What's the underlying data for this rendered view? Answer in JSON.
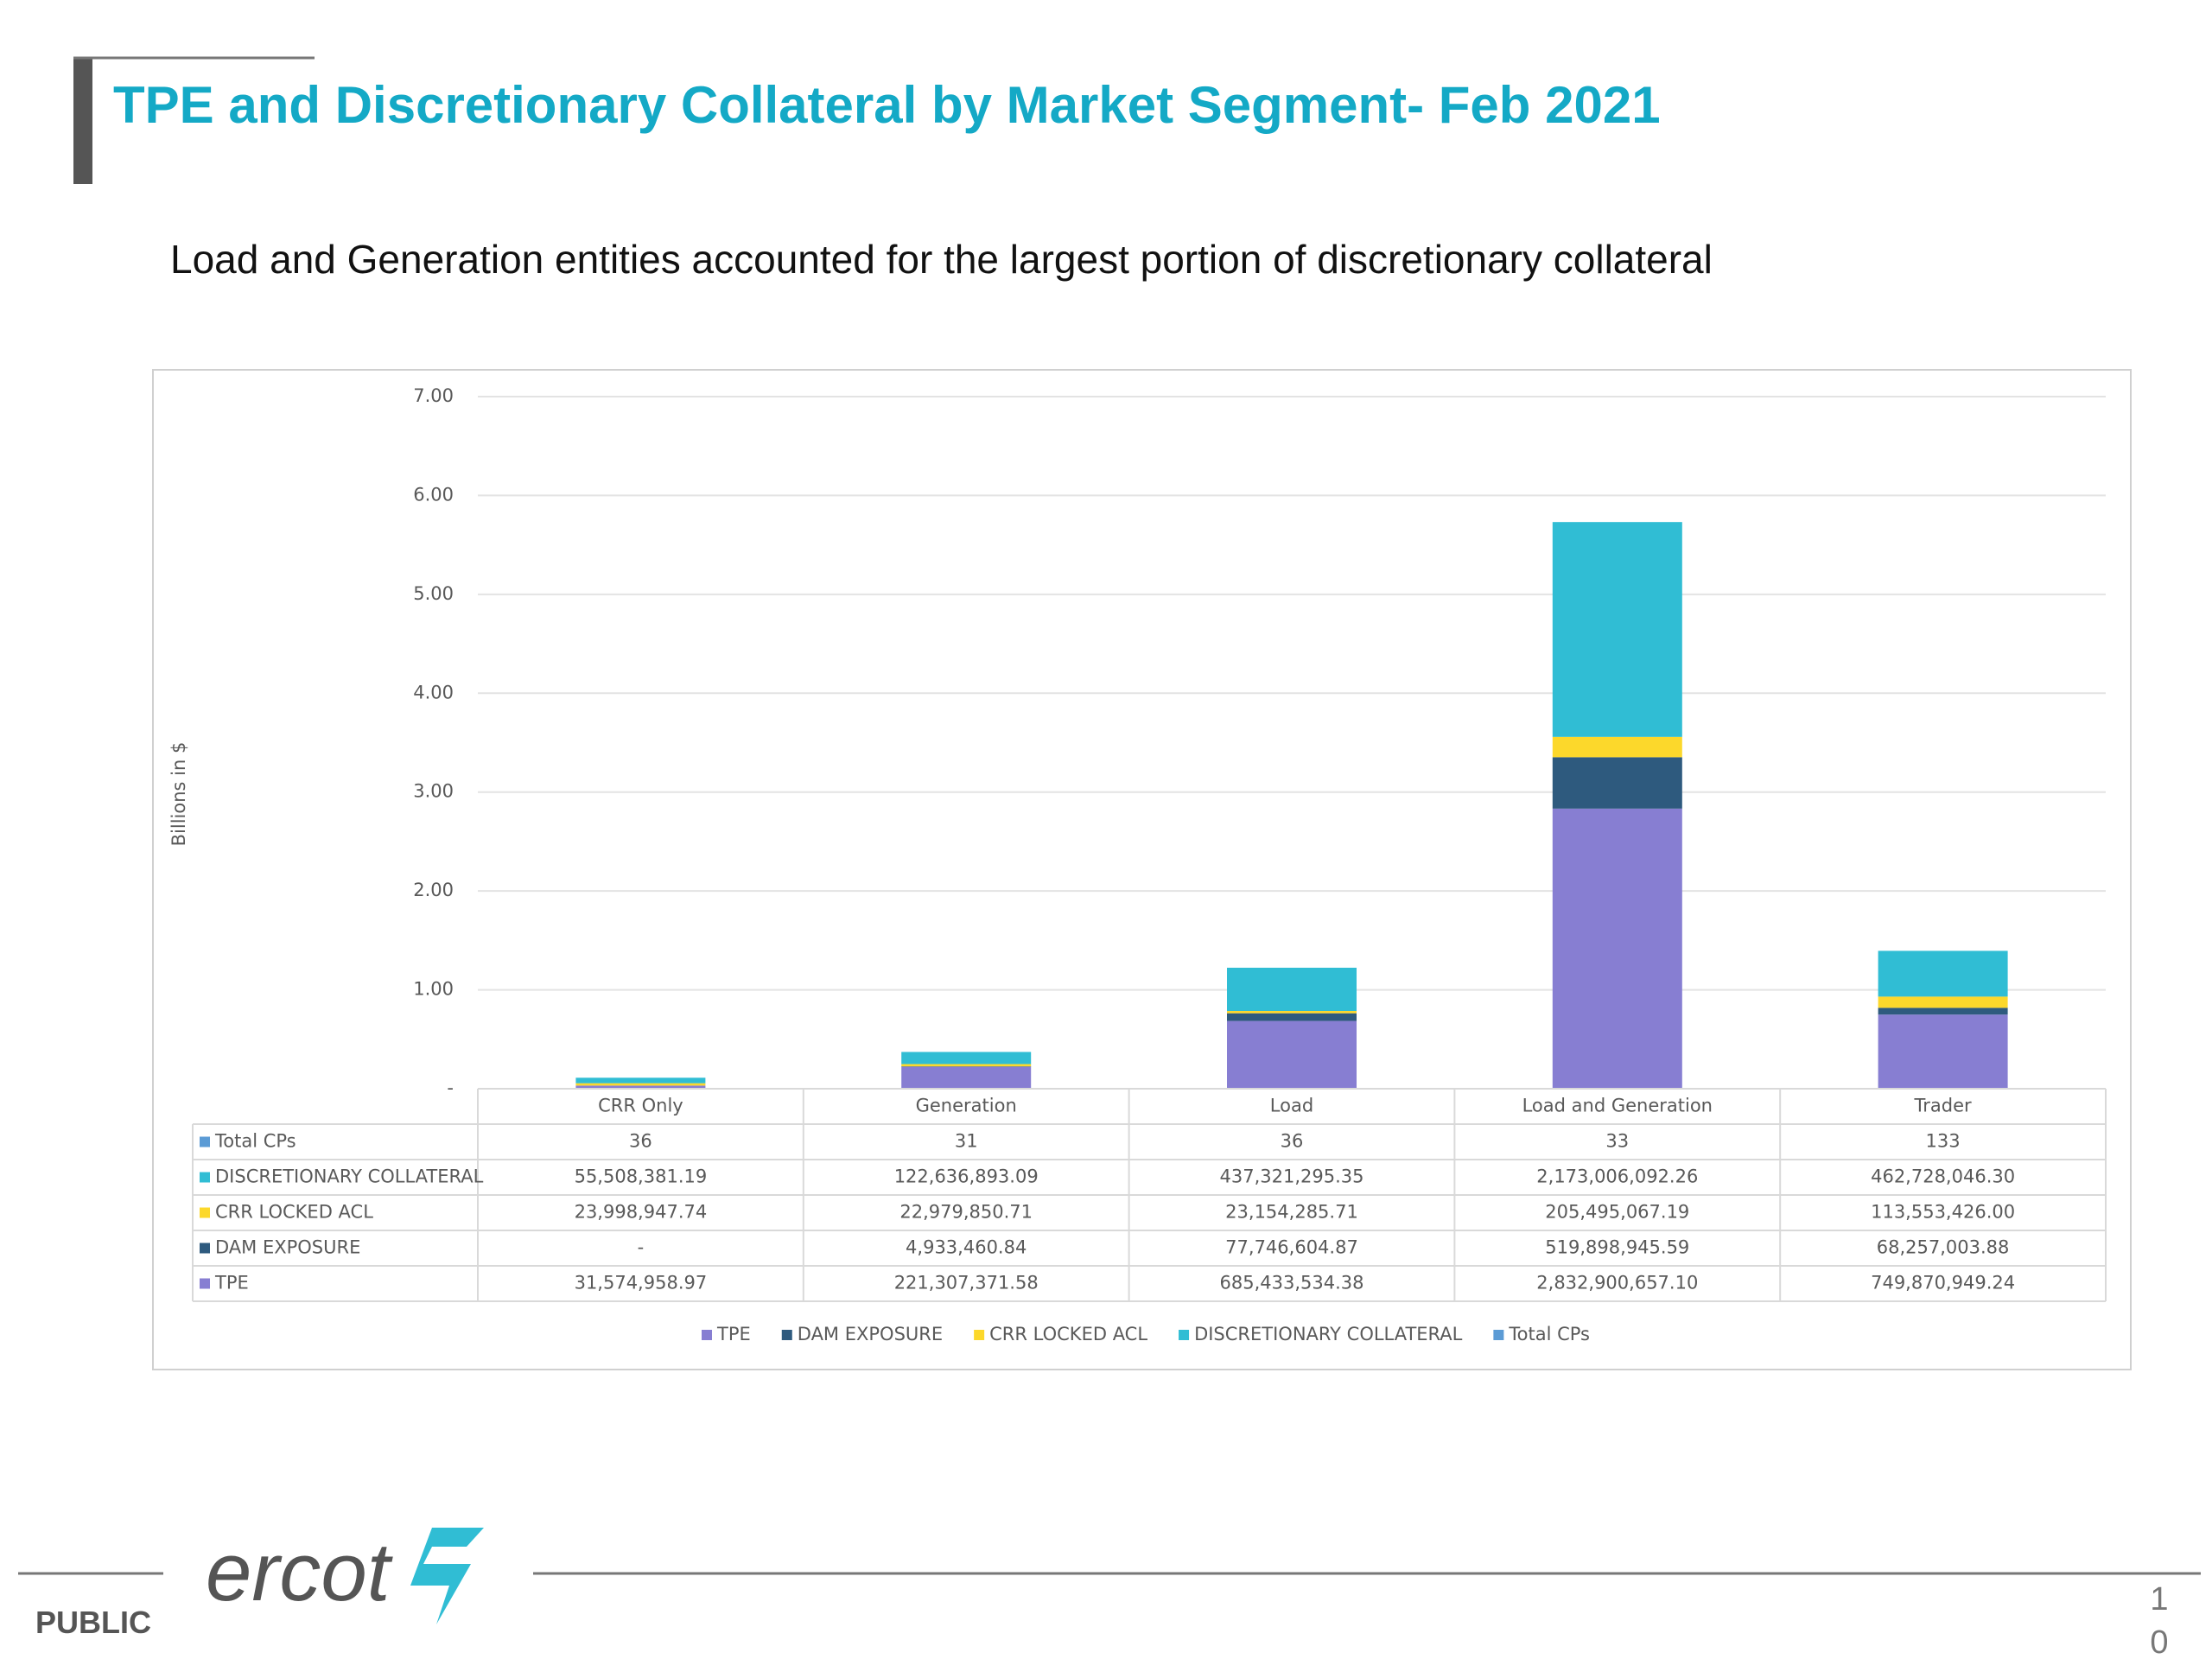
{
  "header": {
    "title": "TPE and Discretionary Collateral by Market Segment- Feb 2021",
    "subtitle": "Load and Generation entities accounted for the largest portion of discretionary collateral"
  },
  "chart_data": {
    "type": "stacked_bar",
    "y_label": "Billions in $",
    "categories": [
      "CRR Only",
      "Generation",
      "Load",
      "Load and Generation",
      "Trader"
    ],
    "ylim": [
      0,
      7
    ],
    "yticks": [
      {
        "value": 0,
        "label": "-"
      },
      {
        "value": 1,
        "label": "1.00"
      },
      {
        "value": 2,
        "label": "2.00"
      },
      {
        "value": 3,
        "label": "3.00"
      },
      {
        "value": 4,
        "label": "4.00"
      },
      {
        "value": 5,
        "label": "5.00"
      },
      {
        "value": 6,
        "label": "6.00"
      },
      {
        "value": 7,
        "label": "7.00"
      }
    ],
    "grid": true,
    "series": [
      {
        "name": "TPE",
        "color": "#877ed2",
        "values": [
          0.03157495897,
          0.22130737158,
          0.68543353438,
          2.8329006571,
          0.74987094924
        ],
        "value_labels": [
          "31,574,958.97",
          "221,307,371.58",
          "685,433,534.38",
          "2,832,900,657.10",
          "749,870,949.24"
        ]
      },
      {
        "name": "DAM EXPOSURE",
        "color": "#2e5a7e",
        "values": [
          0,
          0.00493346084,
          0.07774660487,
          0.51989894559,
          0.06825700388
        ],
        "value_labels": [
          "-",
          "4,933,460.84",
          "77,746,604.87",
          "519,898,945.59",
          "68,257,003.88"
        ]
      },
      {
        "name": "CRR LOCKED ACL",
        "color": "#fcd82b",
        "values": [
          0.02399894774,
          0.02297985071,
          0.02315428571,
          0.20549506719,
          0.113553426
        ],
        "value_labels": [
          "23,998,947.74",
          "22,979,850.71",
          "23,154,285.71",
          "205,495,067.19",
          "113,553,426.00"
        ]
      },
      {
        "name": "DISCRETIONARY COLLATERAL",
        "color": "#30bdd4",
        "values": [
          0.05550838119,
          0.12263689309,
          0.43732129535,
          2.17300609226,
          0.4627280463
        ],
        "value_labels": [
          "55,508,381.19",
          "122,636,893.09",
          "437,321,295.35",
          "2,173,006,092.26",
          "462,728,046.30"
        ]
      }
    ],
    "table_series": [
      {
        "name": "Total CPs",
        "color": "#5b9bd5",
        "values": [
          36,
          31,
          36,
          33,
          133
        ]
      }
    ]
  },
  "footer": {
    "classification": "PUBLIC",
    "logo": "ercot",
    "page": "10"
  }
}
